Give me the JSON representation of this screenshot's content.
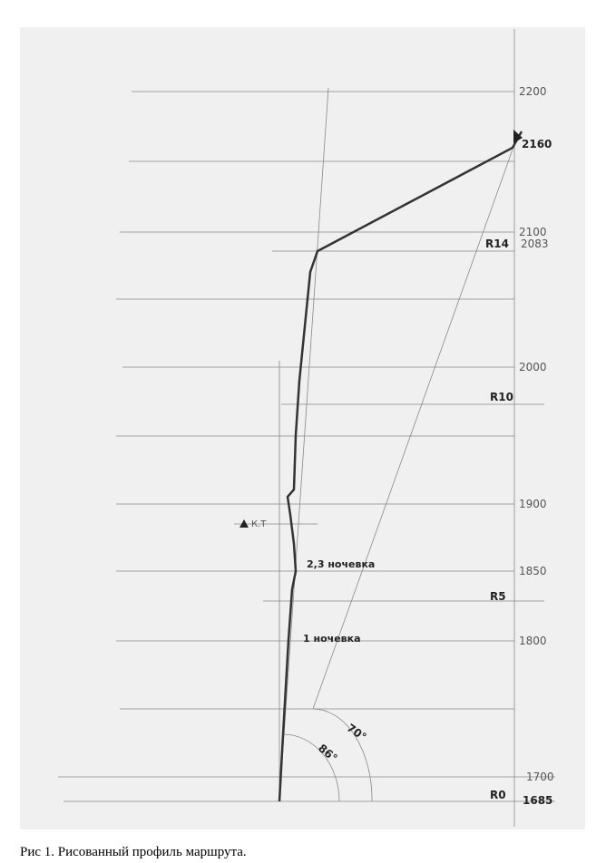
{
  "figure": {
    "altitude_labels": [
      "2200",
      "2160",
      "2100",
      "2083",
      "2000",
      "1900",
      "1850",
      "1800",
      "1700",
      "1685"
    ],
    "point_labels": [
      "R14",
      "R10",
      "R5",
      "R0"
    ],
    "annotations": [
      "К.Т",
      "2,3 ночевка",
      "1 ночевка",
      "70°",
      "86°"
    ],
    "caption": "Рис 1. Рисованный профиль маршрута."
  }
}
